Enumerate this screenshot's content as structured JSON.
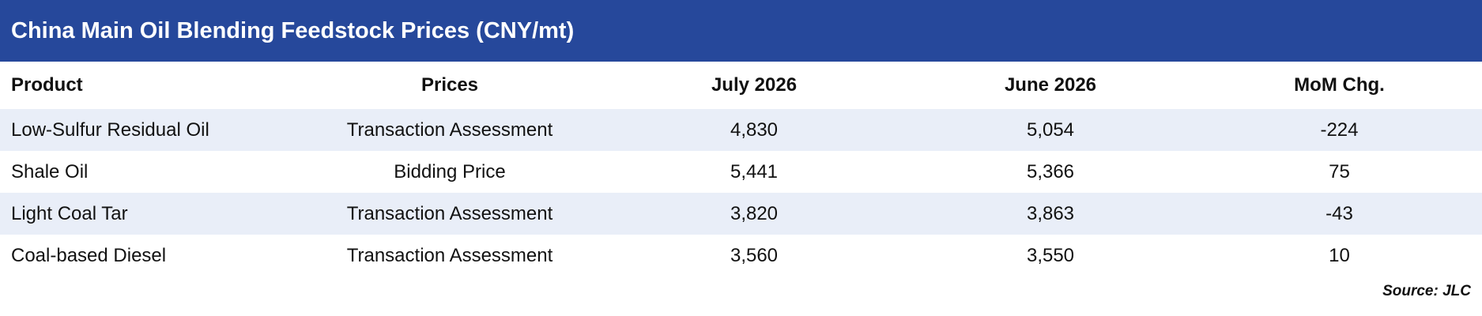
{
  "header": {
    "title": "China Main Oil Blending Feedstock Prices (CNY/mt)"
  },
  "table": {
    "columns": [
      "Product",
      "Prices",
      "July 2026",
      "June 2026",
      "MoM Chg."
    ],
    "rows": [
      [
        "Low-Sulfur Residual Oil",
        "Transaction Assessment",
        "4,830",
        "5,054",
        "-224"
      ],
      [
        "Shale Oil",
        "Bidding Price",
        "5,441",
        "5,366",
        "75"
      ],
      [
        "Light Coal Tar",
        "Transaction Assessment",
        "3,820",
        "3,863",
        "-43"
      ],
      [
        "Coal-based Diesel",
        "Transaction Assessment",
        "3,560",
        "3,550",
        "10"
      ]
    ]
  },
  "footer": {
    "source": "Source: JLC"
  }
}
